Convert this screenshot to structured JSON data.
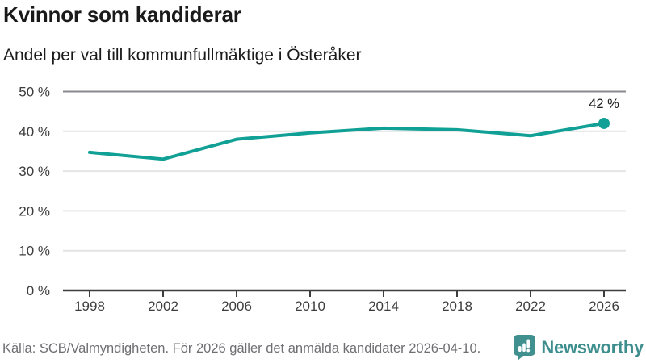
{
  "header": {
    "title": "Kvinnor som kandiderar",
    "subtitle": "Andel per val till kommunfullmäktige i Österåker"
  },
  "chart_data": {
    "type": "line",
    "x": [
      1998,
      2002,
      2006,
      2010,
      2014,
      2018,
      2022,
      2026
    ],
    "values": [
      34.7,
      33,
      38,
      39.6,
      40.8,
      40.4,
      38.9,
      42
    ],
    "end_label": "42 %",
    "title": "Kvinnor som kandiderar",
    "subtitle": "Andel per val till kommunfullmäktige i Österåker",
    "xlabel": "",
    "ylabel": "",
    "ylim": [
      0,
      50
    ],
    "yticks": [
      0,
      10,
      20,
      30,
      40,
      50
    ],
    "ytick_suffix": " %",
    "grid": true,
    "legend_position": "none",
    "line_color": "#11a095",
    "marker_last_point": true
  },
  "footer": {
    "source": "Källa: SCB/Valmyndigheten. För 2026 gäller det anmälda kandidater 2026-04-10.",
    "logo_text": "Newsworthy"
  },
  "colors": {
    "accent_teal": "#11a095",
    "logo_teal": "#3e8e8e",
    "grid_light": "#e4e4e4",
    "grid_top": "#8a8a8e",
    "axis_dark": "#3d3d3d",
    "text_dark": "#1a1a1a",
    "text_muted": "#6e6e73"
  }
}
